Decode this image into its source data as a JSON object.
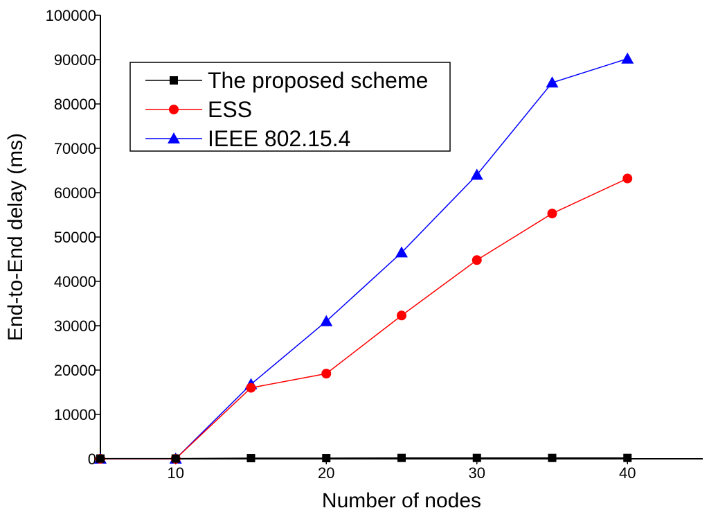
{
  "chart_data": {
    "type": "line",
    "title": "",
    "xlabel": "Number of nodes",
    "ylabel": "End-to-End delay (ms)",
    "xlim": [
      5,
      45
    ],
    "ylim": [
      0,
      100000
    ],
    "x": [
      5,
      10,
      15,
      20,
      25,
      30,
      35,
      40
    ],
    "xticks": [
      10,
      20,
      30,
      40
    ],
    "yticks": [
      0,
      10000,
      20000,
      30000,
      40000,
      50000,
      60000,
      70000,
      80000,
      90000,
      100000
    ],
    "grid": false,
    "legend_position": "top-left",
    "series": [
      {
        "name": "The proposed scheme",
        "color": "#000000",
        "marker": "square",
        "values": [
          50,
          50,
          150,
          150,
          200,
          200,
          200,
          200
        ]
      },
      {
        "name": "ESS",
        "color": "#ff0000",
        "marker": "circle",
        "values": [
          0,
          0,
          16000,
          19200,
          32300,
          44800,
          55300,
          63200
        ]
      },
      {
        "name": "IEEE 802.15.4",
        "color": "#0000ff",
        "marker": "triangle",
        "values": [
          0,
          0,
          16800,
          31000,
          46500,
          64000,
          84800,
          90200
        ]
      }
    ]
  }
}
